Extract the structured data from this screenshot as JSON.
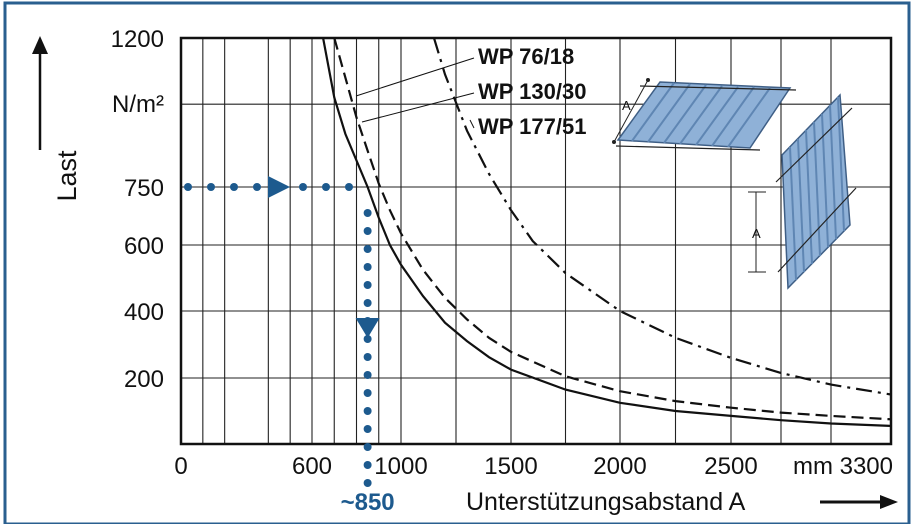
{
  "colors": {
    "frame": "#2a5f8f",
    "ink": "#111111",
    "guide": "#1d5a8e",
    "panel": "#8fb1d7",
    "panel_dark": "#5f86b3"
  },
  "chart_data": {
    "type": "line",
    "xlabel": "Unterstützungsabstand A",
    "ylabel": "Last",
    "y_unit": "N/m²",
    "x_unit_label": "mm",
    "xlim": [
      0,
      3300
    ],
    "ylim": [
      0,
      1200
    ],
    "x_ticks": [
      0,
      600,
      1000,
      1500,
      2000,
      2500,
      3300
    ],
    "x_tick_labels": [
      "0",
      "600",
      "1000",
      "1500",
      "2000",
      "2500",
      "mm 3300"
    ],
    "y_ticks": [
      200,
      400,
      600,
      750,
      1200
    ],
    "y_tick_labels": [
      "200",
      "400",
      "600",
      "750",
      "1200"
    ],
    "grid": true,
    "series": [
      {
        "name": "WP 76/18",
        "style": "solid",
        "x": [
          650,
          700,
          750,
          800,
          850,
          900,
          950,
          1000,
          1100,
          1200,
          1300,
          1400,
          1500,
          1750,
          2000,
          2250,
          2500,
          2750,
          3000,
          3300
        ],
        "y": [
          1200,
          1020,
          910,
          830,
          750,
          670,
          600,
          540,
          445,
          365,
          310,
          262,
          225,
          165,
          125,
          100,
          85,
          72,
          62,
          55
        ]
      },
      {
        "name": "WP 130/30",
        "style": "dashed",
        "x": [
          700,
          750,
          800,
          850,
          900,
          950,
          1000,
          1100,
          1200,
          1300,
          1400,
          1500,
          1750,
          2000,
          2250,
          2500,
          2750,
          3000,
          3300
        ],
        "y": [
          1200,
          1080,
          960,
          860,
          760,
          690,
          630,
          525,
          440,
          375,
          320,
          278,
          205,
          160,
          130,
          110,
          95,
          85,
          75
        ]
      },
      {
        "name": "WP 177/51",
        "style": "dashdot",
        "x": [
          1150,
          1200,
          1300,
          1400,
          1500,
          1600,
          1750,
          2000,
          2250,
          2500,
          2750,
          3000,
          3300
        ],
        "y": [
          1200,
          1090,
          920,
          790,
          690,
          610,
          515,
          400,
          320,
          260,
          215,
          180,
          150
        ]
      }
    ],
    "annotations": [
      {
        "text": "~850",
        "x": 850,
        "y": 750,
        "note": "read-off guide from 750 N/m² to ~850 mm"
      }
    ]
  }
}
